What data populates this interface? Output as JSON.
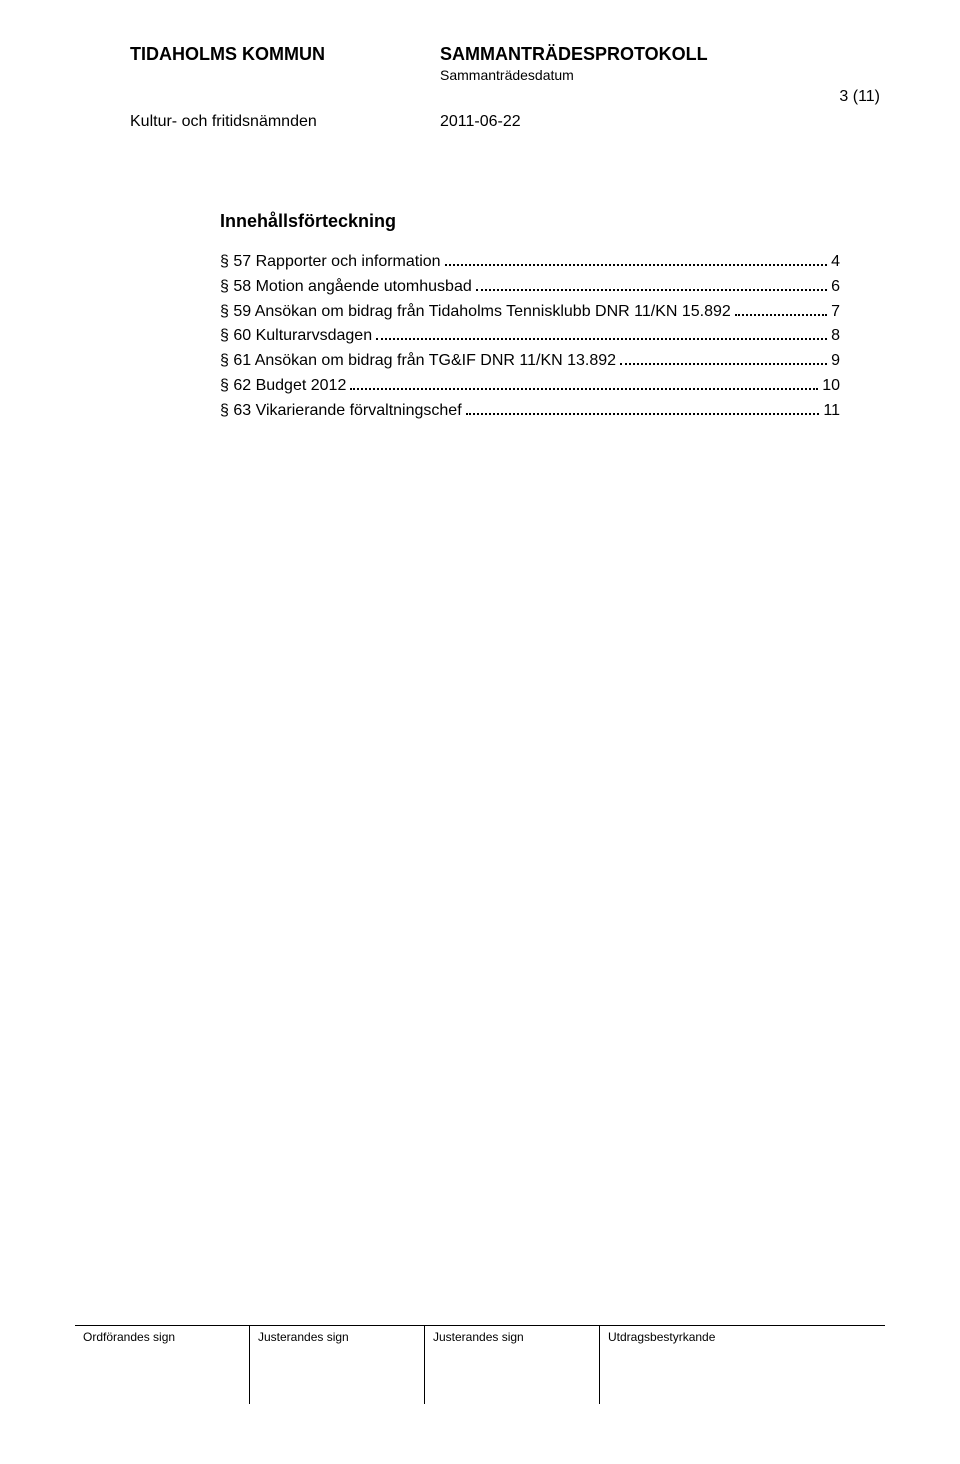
{
  "header": {
    "org": "TIDAHOLMS KOMMUN",
    "doc_type": "SAMMANTRÄDESPROTOKOLL",
    "sub": "Sammanträdesdatum",
    "page_num": "3 (11)",
    "department": "Kultur- och fritidsnämnden",
    "date": "2011-06-22"
  },
  "toc": {
    "title": "Innehållsförteckning",
    "items": [
      {
        "label": "§ 57 Rapporter och information",
        "page": "4"
      },
      {
        "label": "§ 58 Motion angående utomhusbad",
        "page": "6"
      },
      {
        "label": "§ 59 Ansökan om bidrag från Tidaholms Tennisklubb  DNR 11/KN 15.892",
        "page": "7"
      },
      {
        "label": "§ 60 Kulturarvsdagen",
        "page": "8"
      },
      {
        "label": "§ 61 Ansökan om bidrag från TG&IF  DNR 11/KN 13.892",
        "page": "9"
      },
      {
        "label": "§ 62 Budget 2012",
        "page": "10"
      },
      {
        "label": "§ 63 Vikarierande förvaltningschef",
        "page": "11"
      }
    ]
  },
  "footer": {
    "c1": "Ordförandes sign",
    "c2": "Justerandes sign",
    "c3": "Justerandes sign",
    "c4": "Utdragsbestyrkande"
  }
}
